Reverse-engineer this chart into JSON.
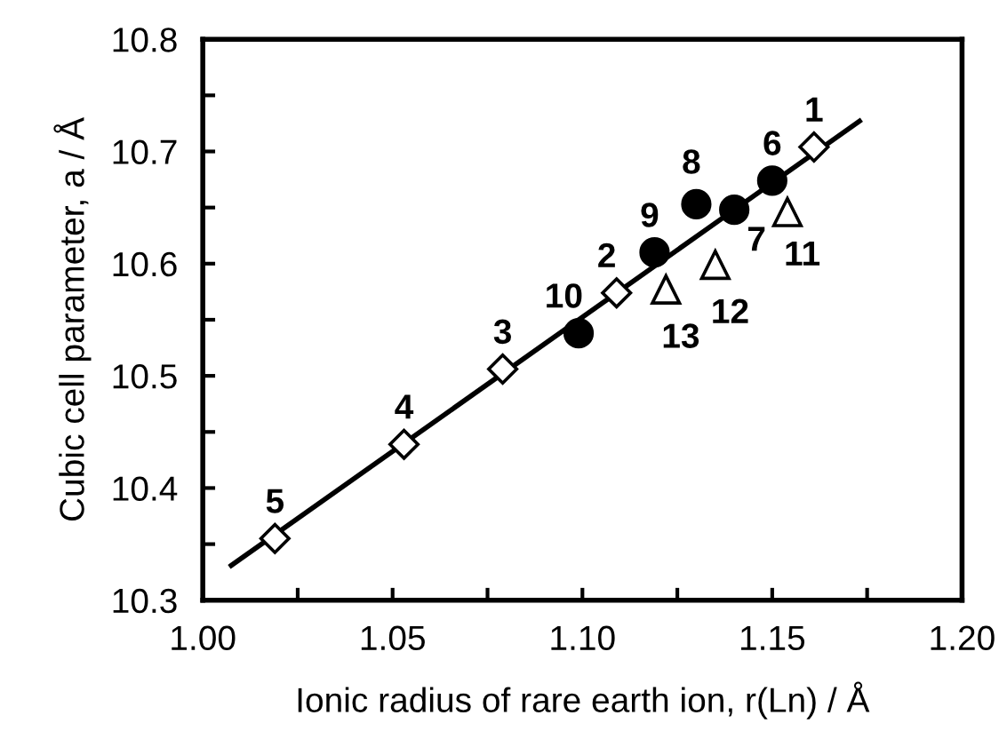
{
  "chart_data": {
    "type": "scatter",
    "xlabel": "Ionic radius of rare earth ion, r(Ln) / Å",
    "ylabel": "Cubic cell parameter, a / Å",
    "xlim": [
      1.0,
      1.2
    ],
    "ylim": [
      10.3,
      10.8
    ],
    "xticks": [
      {
        "value": 1.0,
        "label": "1.00"
      },
      {
        "value": 1.025,
        "label": null
      },
      {
        "value": 1.05,
        "label": "1.05"
      },
      {
        "value": 1.075,
        "label": null
      },
      {
        "value": 1.1,
        "label": "1.10"
      },
      {
        "value": 1.125,
        "label": null
      },
      {
        "value": 1.15,
        "label": "1.15"
      },
      {
        "value": 1.175,
        "label": null
      },
      {
        "value": 1.2,
        "label": "1.20"
      }
    ],
    "yticks": [
      10.3,
      {
        "value": 10.35,
        "label": null
      },
      10.4,
      {
        "value": 10.45,
        "label": null
      },
      10.5,
      {
        "value": 10.55,
        "label": null
      },
      10.6,
      {
        "value": 10.65,
        "label": null
      },
      10.7,
      {
        "value": 10.75,
        "label": null
      },
      10.8
    ],
    "grid": false,
    "legend": false,
    "series": [
      {
        "type": "line",
        "color": "#000000",
        "marker": "none",
        "line_style": "solid",
        "x": [
          1.0075,
          1.173
        ],
        "values": [
          10.331,
          10.727
        ]
      },
      {
        "color": "#000000",
        "marker": "diamond",
        "x": [
          1.161,
          1.109,
          1.079,
          1.053,
          1.019
        ],
        "values": [
          10.704,
          10.574,
          10.506,
          10.439,
          10.355
        ]
      },
      {
        "color": "#000000",
        "marker": "circle",
        "x": [
          1.15,
          1.14,
          1.13,
          1.119,
          1.099
        ],
        "values": [
          10.674,
          10.648,
          10.653,
          10.61,
          10.538
        ]
      },
      {
        "color": "#000000",
        "marker": "triangle",
        "x": [
          1.154,
          1.135,
          1.122
        ],
        "values": [
          10.646,
          10.599,
          10.577
        ]
      }
    ],
    "annotations": [
      {
        "text": "1",
        "x": 1.161,
        "y": 10.704
      },
      {
        "text": "2",
        "x": 1.109,
        "y": 10.574
      },
      {
        "text": "3",
        "x": 1.079,
        "y": 10.506
      },
      {
        "text": "4",
        "x": 1.053,
        "y": 10.439
      },
      {
        "text": "5",
        "x": 1.019,
        "y": 10.355
      },
      {
        "text": "6",
        "x": 1.15,
        "y": 10.674
      },
      {
        "text": "7",
        "x": 1.14,
        "y": 10.648
      },
      {
        "text": "8",
        "x": 1.13,
        "y": 10.653
      },
      {
        "text": "9",
        "x": 1.119,
        "y": 10.61
      },
      {
        "text": "10",
        "x": 1.099,
        "y": 10.538
      },
      {
        "text": "11",
        "x": 1.154,
        "y": 10.646
      },
      {
        "text": "12",
        "x": 1.135,
        "y": 10.599
      },
      {
        "text": "13",
        "x": 1.122,
        "y": 10.577
      }
    ]
  }
}
